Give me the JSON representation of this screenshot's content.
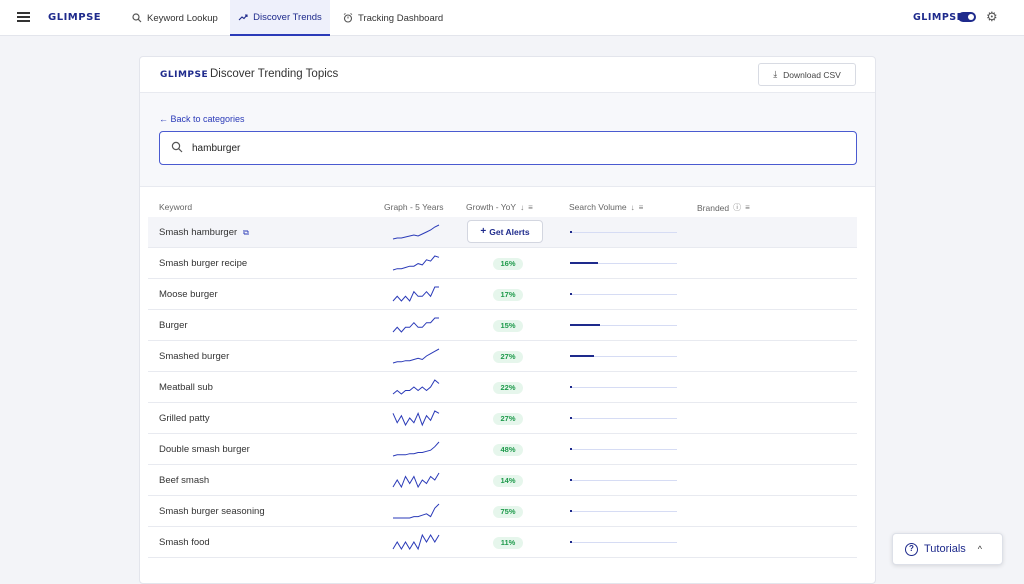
{
  "nav": {
    "logo": "GLIMPSE",
    "tabs": [
      {
        "label": "Keyword Lookup",
        "icon": "search-icon"
      },
      {
        "label": "Discover Trends",
        "icon": "trend-icon"
      },
      {
        "label": "Tracking Dashboard",
        "icon": "alarm-icon"
      }
    ],
    "right_logo": "GLIMPSE"
  },
  "card": {
    "logo": "GLIMPSE",
    "title": "Discover Trending Topics",
    "download_label": "Download CSV",
    "back_label": "← Back to categories",
    "search_value": "hamburger"
  },
  "table": {
    "headers": {
      "keyword": "Keyword",
      "graph": "Graph - 5 Years",
      "growth": "Growth - YoY",
      "volume": "Search Volume",
      "branded": "Branded"
    },
    "alert_label": "Get Alerts",
    "rows": [
      {
        "keyword": "Smash hamburger",
        "growth": "",
        "volume": 0.02,
        "spark": [
          3,
          4,
          4,
          5,
          6,
          7,
          6,
          8,
          10,
          12,
          15,
          17
        ]
      },
      {
        "keyword": "Smash burger recipe",
        "growth": "16%",
        "volume": 0.26,
        "spark": [
          3,
          4,
          4,
          5,
          6,
          6,
          8,
          7,
          11,
          10,
          14,
          13
        ]
      },
      {
        "keyword": "Moose burger",
        "growth": "17%",
        "volume": 0.0,
        "spark": [
          6,
          7,
          6,
          7,
          6,
          8,
          7,
          7,
          8,
          7,
          9,
          9
        ]
      },
      {
        "keyword": "Burger",
        "growth": "15%",
        "volume": 0.28,
        "spark": [
          7,
          8,
          7,
          8,
          8,
          9,
          8,
          8,
          9,
          9,
          10,
          10
        ]
      },
      {
        "keyword": "Smashed burger",
        "growth": "27%",
        "volume": 0.22,
        "spark": [
          3,
          4,
          4,
          5,
          5,
          6,
          7,
          6,
          9,
          11,
          13,
          15
        ]
      },
      {
        "keyword": "Meatball sub",
        "growth": "22%",
        "volume": 0.01,
        "spark": [
          6,
          7,
          6,
          7,
          7,
          8,
          7,
          8,
          7,
          8,
          10,
          9
        ]
      },
      {
        "keyword": "Grilled patty",
        "growth": "27%",
        "volume": 0.0,
        "spark": [
          12,
          8,
          11,
          7,
          10,
          8,
          12,
          7,
          11,
          9,
          13,
          12
        ]
      },
      {
        "keyword": "Double smash burger",
        "growth": "48%",
        "volume": 0.01,
        "spark": [
          2,
          3,
          3,
          3,
          4,
          4,
          5,
          5,
          6,
          7,
          10,
          14
        ]
      },
      {
        "keyword": "Beef smash",
        "growth": "14%",
        "volume": 0.01,
        "spark": [
          7,
          9,
          7,
          10,
          8,
          10,
          7,
          9,
          8,
          10,
          9,
          11
        ]
      },
      {
        "keyword": "Smash burger seasoning",
        "growth": "75%",
        "volume": 0.0,
        "spark": [
          3,
          3,
          3,
          3,
          3,
          4,
          4,
          5,
          6,
          4,
          10,
          13
        ]
      },
      {
        "keyword": "Smash food",
        "growth": "11%",
        "volume": 0.01,
        "spark": [
          8,
          9,
          8,
          9,
          8,
          9,
          8,
          10,
          9,
          10,
          9,
          10
        ]
      }
    ]
  },
  "tutorials": {
    "label": "Tutorials"
  }
}
